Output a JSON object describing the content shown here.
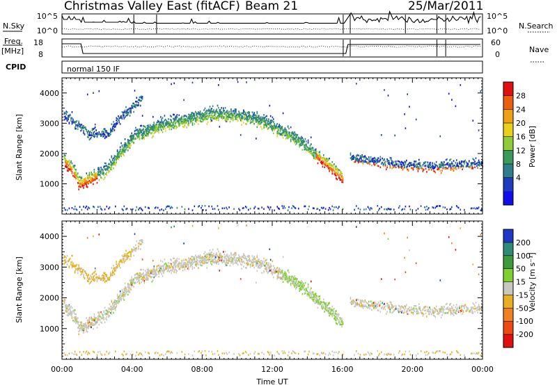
{
  "header": {
    "title": "Christmas Valley East (fitACF)",
    "beam": "Beam 21",
    "date": "25/Mar/2011"
  },
  "strips": {
    "nsky": {
      "label": "N.Sky",
      "ticks": [
        "10^5",
        "10^0"
      ]
    },
    "nsearch": {
      "label": "N.Search",
      "ticks": [
        "10^5",
        "10^0"
      ]
    },
    "freq": {
      "label_line1": "Freq.",
      "label_line2": "[MHz]",
      "ticks": [
        "18",
        "8"
      ]
    },
    "nave": {
      "label": "Nave",
      "ticks": [
        "60",
        "0"
      ]
    },
    "cpid": {
      "label": "CPID",
      "program": "normal 150 IF"
    }
  },
  "chart_data": [
    {
      "type": "heatmap",
      "title": "",
      "ylabel": "Slant Range [km]",
      "xlabel": "",
      "x_range_hours": [
        0,
        24
      ],
      "ylim": [
        0,
        4500
      ],
      "y_ticks": [
        "1000",
        "2000",
        "3000",
        "4000"
      ],
      "colorbar": {
        "label": "Power [dB]",
        "ticks": [
          "4",
          "8",
          "12",
          "16",
          "20",
          "24",
          "28"
        ],
        "colors": [
          "#1010e6",
          "#1f3cbf",
          "#2e7e8c",
          "#3c9a5a",
          "#8fcc3a",
          "#e8d020",
          "#f0a018",
          "#ea6010",
          "#e01010"
        ]
      },
      "echo_bands": [
        {
          "name": "main",
          "points": [
            [
              0.1,
              1850
            ],
            [
              0.6,
              1550
            ],
            [
              1.0,
              1100
            ],
            [
              1.8,
              1300
            ],
            [
              2.6,
              1600
            ],
            [
              3.4,
              2200
            ],
            [
              4.2,
              2700
            ],
            [
              5.5,
              3000
            ],
            [
              7.0,
              3200
            ],
            [
              8.5,
              3400
            ],
            [
              10.0,
              3350
            ],
            [
              11.5,
              3150
            ],
            [
              13.0,
              2700
            ],
            [
              14.0,
              2300
            ],
            [
              15.0,
              1800
            ],
            [
              15.7,
              1450
            ],
            [
              16.0,
              1300
            ]
          ]
        },
        {
          "name": "upper",
          "points": [
            [
              0.1,
              3300
            ],
            [
              1.5,
              2700
            ],
            [
              2.5,
              2650
            ],
            [
              3.5,
              3300
            ],
            [
              4.3,
              3700
            ],
            [
              4.6,
              3900
            ]
          ]
        },
        {
          "name": "late_evening",
          "points": [
            [
              16.4,
              1900
            ],
            [
              18.0,
              1750
            ],
            [
              19.5,
              1650
            ],
            [
              21.0,
              1600
            ],
            [
              22.5,
              1650
            ],
            [
              24.0,
              1700
            ]
          ]
        }
      ]
    },
    {
      "type": "heatmap",
      "title": "",
      "ylabel": "Slant Range [km]",
      "xlabel": "Time UT",
      "x_ticks": [
        "00:00",
        "04:00",
        "08:00",
        "12:00",
        "16:00",
        "20:00",
        "00:00"
      ],
      "x_range_hours": [
        0,
        24
      ],
      "ylim": [
        0,
        4500
      ],
      "y_ticks": [
        "1000",
        "2000",
        "3000",
        "4000"
      ],
      "colorbar": {
        "label": "Velocity [m s⁻¹]",
        "ticks": [
          "200",
          "100",
          "50",
          "15",
          "-15",
          "-50",
          "-100",
          "-200"
        ],
        "colors": [
          "#2038c8",
          "#2f8a78",
          "#3f9a3c",
          "#7ed030",
          "#c8c8c0",
          "#e8b020",
          "#f08020",
          "#ec4a10",
          "#e01010"
        ]
      }
    }
  ]
}
